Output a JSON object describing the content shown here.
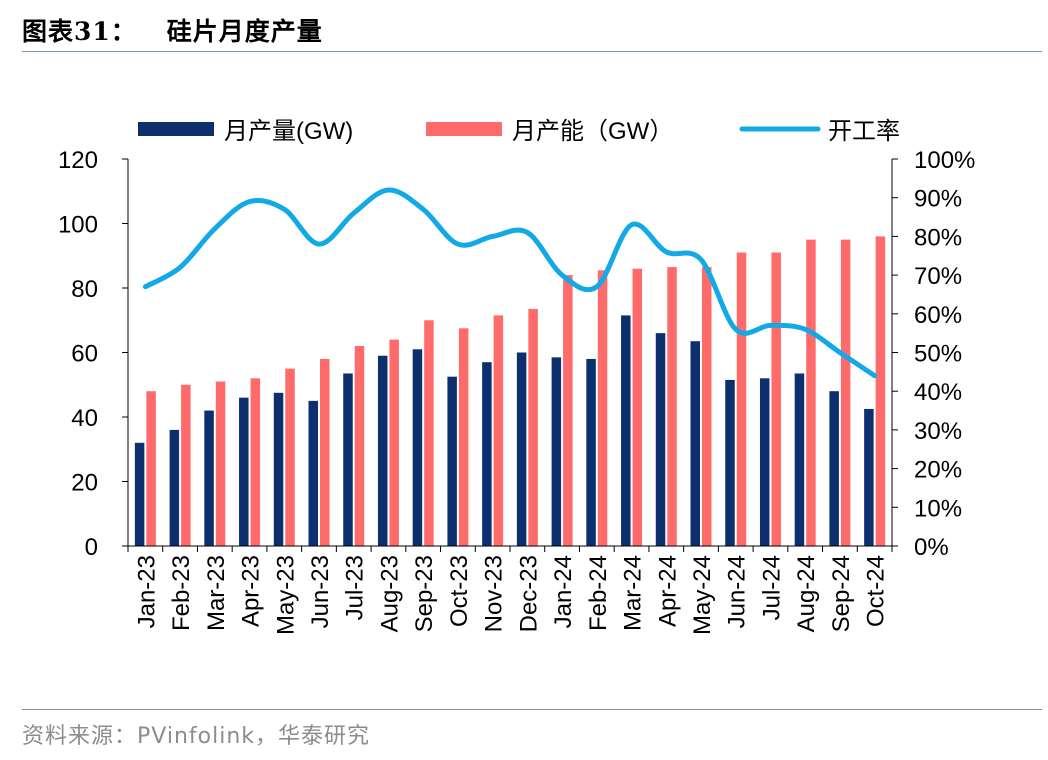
{
  "header": {
    "figure_no": "图表31：",
    "title": "硅片月度产量"
  },
  "footer": {
    "source": "资料来源：PVinfolink，华泰研究"
  },
  "colors": {
    "production": "#0d2f6e",
    "capacity": "#ff6b6b",
    "utilization": "#12a9e6",
    "rule": "#7f93b4"
  },
  "chart_data": {
    "type": "bar",
    "title": "硅片月度产量",
    "categories": [
      "Jan-23",
      "Feb-23",
      "Mar-23",
      "Apr-23",
      "May-23",
      "Jun-23",
      "Jul-23",
      "Aug-23",
      "Sep-23",
      "Oct-23",
      "Nov-23",
      "Dec-23",
      "Jan-24",
      "Feb-24",
      "Mar-24",
      "Apr-24",
      "May-24",
      "Jun-24",
      "Jul-24",
      "Aug-24",
      "Sep-24",
      "Oct-24"
    ],
    "series": [
      {
        "name": "月产量(GW)",
        "kind": "bar",
        "axis": "left",
        "values": [
          32,
          36,
          42,
          46,
          47.5,
          45,
          53.5,
          59,
          61,
          52.5,
          57,
          60,
          58.5,
          58,
          71.5,
          66,
          63.5,
          51.5,
          52,
          53.5,
          48,
          42.5
        ]
      },
      {
        "name": "月产能（GW）",
        "kind": "bar",
        "axis": "left",
        "values": [
          48,
          50,
          51,
          52,
          55,
          58,
          62,
          64,
          70,
          67.5,
          71.5,
          73.5,
          84,
          85.5,
          86,
          86.5,
          86.5,
          91,
          91,
          95,
          95,
          96
        ]
      },
      {
        "name": "开工率",
        "kind": "line",
        "axis": "right",
        "values": [
          0.67,
          0.72,
          0.82,
          0.89,
          0.87,
          0.78,
          0.86,
          0.92,
          0.87,
          0.78,
          0.8,
          0.81,
          0.7,
          0.67,
          0.83,
          0.76,
          0.74,
          0.56,
          0.57,
          0.56,
          0.5,
          0.44
        ]
      }
    ],
    "y_left": {
      "min": 0,
      "max": 120,
      "ticks": [
        0,
        20,
        40,
        60,
        80,
        100,
        120
      ],
      "tick_labels": [
        "0",
        "20",
        "40",
        "60",
        "80",
        "100",
        "120"
      ]
    },
    "y_right": {
      "min": 0,
      "max": 1,
      "ticks": [
        0,
        0.1,
        0.2,
        0.3,
        0.4,
        0.5,
        0.6,
        0.7,
        0.8,
        0.9,
        1.0
      ],
      "tick_labels": [
        "0%",
        "10%",
        "20%",
        "30%",
        "40%",
        "50%",
        "60%",
        "70%",
        "80%",
        "90%",
        "100%"
      ]
    },
    "legend": {
      "position": "top",
      "items": [
        "月产量(GW)",
        "月产能（GW）",
        "开工率"
      ]
    },
    "grid": false
  }
}
